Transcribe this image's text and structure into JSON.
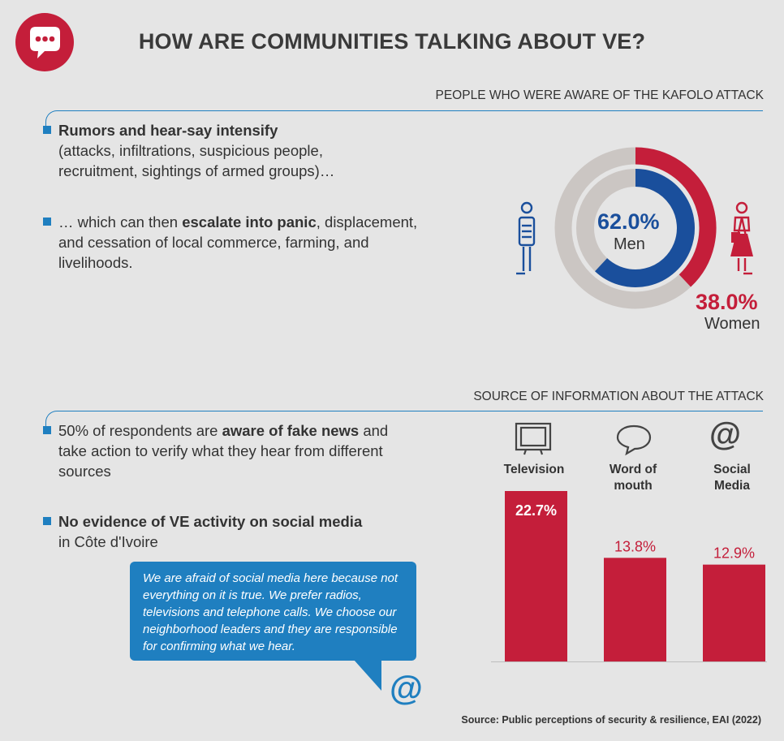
{
  "title": "HOW ARE COMMUNITIES TALKING ABOUT VE?",
  "icons": {
    "logo": "speech-bubble-ellipsis-icon",
    "man": "man-figure-icon",
    "woman": "woman-figure-icon",
    "at": "at-sign-icon"
  },
  "colors": {
    "red": "#c41e3a",
    "blue": "#1a4f9c",
    "accent": "#1f7fc0",
    "grey": "#cbc6c3",
    "background": "#e5e5e5"
  },
  "section1": {
    "heading": "PEOPLE WHO WERE AWARE OF THE KAFOLO ATTACK",
    "bullet1_bold": "Rumors and hear-say intensify",
    "bullet1_text": "(attacks, infiltrations, suspicious people, recruitment, sightings of armed groups)…",
    "bullet2_pre": "… which can then ",
    "bullet2_bold": "escalate into panic",
    "bullet2_post": ", displacement, and cessation of local commerce, farming, and livelihoods."
  },
  "section2": {
    "heading": "SOURCE OF INFORMATION ABOUT THE ATTACK",
    "bullet1_pre": "50% of respondents are ",
    "bullet1_bold": "aware of fake news",
    "bullet1_post": " and take action to verify what they hear from different sources",
    "bullet2_bold": "No evidence of VE activity on social media",
    "bullet2_post": "in Côte d'Ivoire",
    "quote": "We are afraid of social media here because not everything on it is true. We prefer radios, televisions and telephone calls. We choose our neighborhood leaders and they are responsible for confirming what we hear.",
    "at_symbol": "@"
  },
  "source": "Source: Public perceptions of security & resilience, EAI (2022)",
  "chart_data": [
    {
      "type": "pie",
      "title": "PEOPLE WHO WERE AWARE OF THE KAFOLO ATTACK",
      "slices": [
        {
          "label": "Men",
          "value": 62.0,
          "display": "62.0%",
          "color": "#1a4f9c"
        },
        {
          "label": "Women",
          "value": 38.0,
          "display": "38.0%",
          "color": "#c41e3a"
        }
      ]
    },
    {
      "type": "bar",
      "title": "SOURCE OF INFORMATION ABOUT THE ATTACK",
      "categories": [
        "Television",
        "Word of mouth",
        "Social Media"
      ],
      "category_lines": [
        [
          "Television"
        ],
        [
          "Word of",
          "mouth"
        ],
        [
          "Social",
          "Media"
        ]
      ],
      "category_icons": [
        "television-icon",
        "speech-bubble-icon",
        "at-sign-icon"
      ],
      "values": [
        22.7,
        13.8,
        12.9
      ],
      "labels": [
        "22.7%",
        "13.8%",
        "12.9%"
      ],
      "color": "#c41e3a"
    }
  ]
}
